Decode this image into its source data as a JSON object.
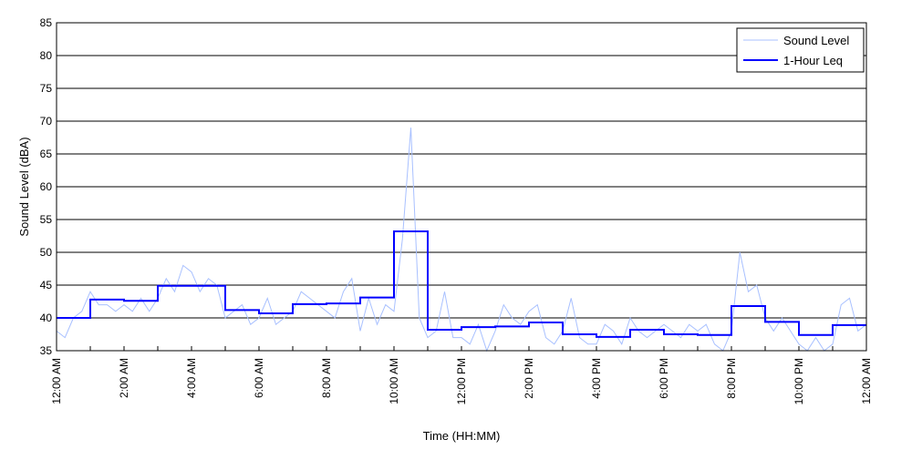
{
  "chart_data": {
    "type": "line",
    "title": "",
    "xlabel": "Time (HH:MM)",
    "ylabel": "Sound Level (dBA)",
    "ylim": [
      35,
      85
    ],
    "yticks": [
      35,
      40,
      45,
      50,
      55,
      60,
      65,
      70,
      75,
      80,
      85
    ],
    "xlim_hours": [
      0,
      24
    ],
    "xtick_labels": [
      "12:00 AM",
      "2:00 AM",
      "4:00 AM",
      "6:00 AM",
      "8:00 AM",
      "10:00 AM",
      "12:00 PM",
      "2:00 PM",
      "4:00 PM",
      "6:00 PM",
      "8:00 PM",
      "10:00 PM",
      "12:00 AM"
    ],
    "grid": "horizontal",
    "legend_position": "top-right",
    "series": [
      {
        "name": "Sound Level",
        "color": "#a8c0ff",
        "sample_interval_minutes": 15,
        "values": [
          38,
          37,
          40,
          41,
          44,
          42,
          42,
          41,
          42,
          41,
          43,
          41,
          43,
          46,
          44,
          48,
          47,
          44,
          46,
          45,
          40,
          41,
          42,
          39,
          40,
          43,
          39,
          40,
          41,
          44,
          43,
          42,
          41,
          40,
          44,
          46,
          38,
          43,
          39,
          42,
          41,
          52,
          69,
          40,
          37,
          38,
          44,
          37,
          37,
          36,
          39,
          35,
          38,
          42,
          40,
          39,
          41,
          42,
          37,
          36,
          38,
          43,
          37,
          36,
          36,
          39,
          38,
          36,
          40,
          38,
          37,
          38,
          39,
          38,
          37,
          39,
          38,
          39,
          36,
          35,
          38,
          50,
          44,
          45,
          40,
          38,
          40,
          38,
          36,
          35,
          37,
          35,
          36,
          42,
          43,
          38,
          39
        ]
      },
      {
        "name": "1-Hour Leq",
        "color": "#0000ff",
        "values": [
          40.0,
          42.8,
          42.6,
          44.9,
          44.9,
          41.2,
          40.7,
          42.1,
          42.2,
          43.1,
          53.2,
          38.2,
          38.6,
          38.7,
          39.3,
          37.5,
          37.1,
          38.2,
          37.5,
          37.4,
          41.8,
          39.4,
          37.4,
          38.9
        ]
      }
    ]
  }
}
